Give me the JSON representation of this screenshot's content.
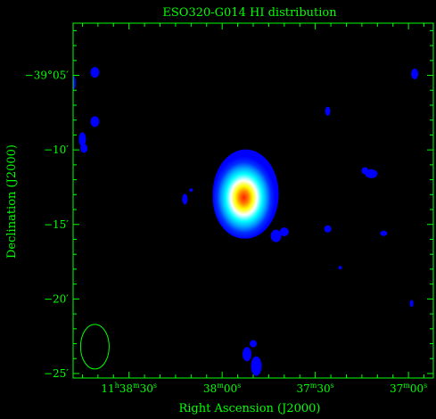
{
  "chart_data": {
    "type": "heatmap",
    "title": "ESO320-G014  HI distribution",
    "xlabel": "Right Ascension (J2000)",
    "ylabel": "Declination (J2000)",
    "x_ticks": [
      {
        "h": "11",
        "m": "38",
        "s": "30",
        "show_hours": true
      },
      {
        "m": "38",
        "s": "00"
      },
      {
        "m": "37",
        "s": "30"
      },
      {
        "m": "37",
        "s": "00"
      }
    ],
    "y_ticks": [
      "−39°05′",
      "−10′",
      "−15′",
      "−20′",
      "−25′"
    ],
    "y_tick_values_arcmin": [
      -5,
      -10,
      -15,
      -20,
      -25
    ],
    "x_tick_values_s": [
      30,
      0,
      -30,
      -60
    ],
    "xlim_s": [
      48,
      -68
    ],
    "ylim_arcmin": [
      -25.3,
      -1.5
    ],
    "colormap": [
      "#0000ff",
      "#00ffff",
      "#ffffff",
      "#ffff00",
      "#ff0000"
    ],
    "axis_color": "#00ff00",
    "background": "#000000",
    "galaxy": {
      "ra_s": -7,
      "dec_arcmin": -13.2,
      "peak": 1.0
    },
    "beam": {
      "ra_s": 41,
      "dec_arcmin": -23.2
    },
    "blobs": [
      {
        "ra_s": 41,
        "dec_arcmin": -4.8
      },
      {
        "ra_s": 41,
        "dec_arcmin": -8.1
      },
      {
        "ra_s": 45,
        "dec_arcmin": -9.3
      },
      {
        "ra_s": 44.5,
        "dec_arcmin": -9.9
      },
      {
        "ra_s": 48,
        "dec_arcmin": -5.5
      },
      {
        "ra_s": 12,
        "dec_arcmin": -13.3
      },
      {
        "ra_s": 10,
        "dec_arcmin": -12.7
      },
      {
        "ra_s": -8,
        "dec_arcmin": -23.7
      },
      {
        "ra_s": -11,
        "dec_arcmin": -24.5
      },
      {
        "ra_s": -10,
        "dec_arcmin": -23.0
      },
      {
        "ra_s": -34,
        "dec_arcmin": -7.4
      },
      {
        "ra_s": -48,
        "dec_arcmin": -11.6
      },
      {
        "ra_s": -46,
        "dec_arcmin": -11.4
      },
      {
        "ra_s": -34,
        "dec_arcmin": -15.3
      },
      {
        "ra_s": -38,
        "dec_arcmin": -17.9
      },
      {
        "ra_s": -52,
        "dec_arcmin": -15.6
      },
      {
        "ra_s": -62,
        "dec_arcmin": -4.9
      },
      {
        "ra_s": -61,
        "dec_arcmin": -20.3
      },
      {
        "ra_s": -20,
        "dec_arcmin": -15.5
      }
    ]
  }
}
